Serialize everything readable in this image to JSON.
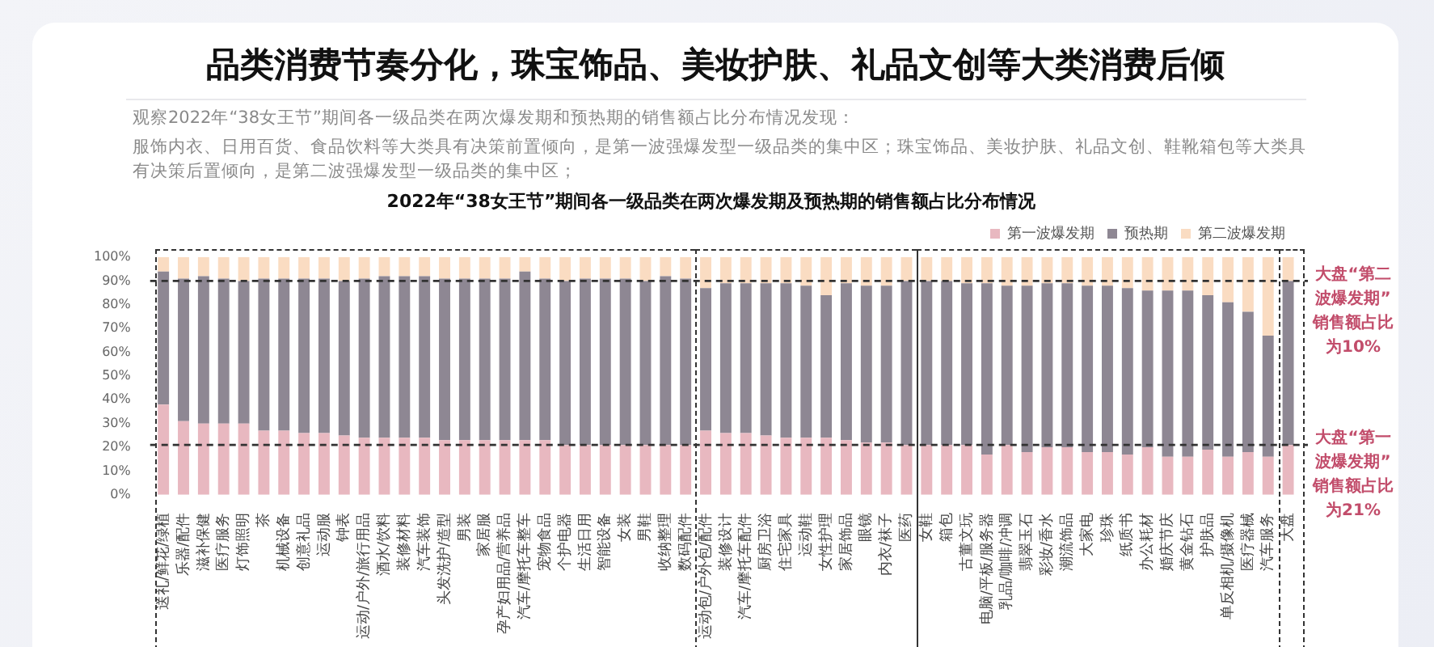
{
  "chart_data": {
    "type": "bar",
    "title": "品类消费节奏分化，珠宝饰品、美妆护肤、礼品文创等大类消费后倾",
    "subtitle": "2022年“38女王节”期间各一级品类在两次爆发期及预热期的销售额占比分布情况",
    "annotations": [
      "观察2022年“38女王节”期间各一级品类在两次爆发期和预热期的销售额占比分布情况发现：",
      "服饰内衣、日用百货、食品饮料等大类具有决策前置倾向，是第一波强爆发型一级品类的集中区；珠宝饰品、美妆护肤、礼品文创、鞋靴箱包等大类具有决策后置倾向，是第二波强爆发型一级品类的集中区；"
    ],
    "categories": [
      "送礼/鲜花/绿植",
      "乐器/配件",
      "滋补保健",
      "医疗服务",
      "灯饰照明",
      "茶",
      "机械设备",
      "创意礼品",
      "运动服",
      "钟表",
      "运动/户外/旅行用品",
      "酒水/饮料",
      "装修材料",
      "汽车装饰",
      "头发洗护/造型",
      "男装",
      "家居服",
      "孕产妇用品/营养品",
      "汽车/摩托车整车",
      "宠物食品",
      "个护电器",
      "生活日用",
      "智能设备",
      "女装",
      "男鞋",
      "收纳整理",
      "数码配件",
      "运动包/户外包/配件",
      "装修设计",
      "汽车/摩托车配件",
      "厨房卫浴",
      "住宅家具",
      "运动鞋",
      "女性护理",
      "家居饰品",
      "眼镜",
      "内衣/袜子",
      "医药",
      "女鞋",
      "箱包",
      "古董文玩",
      "电脑/平板/服务器",
      "乳品/咖啡/冲调",
      "翡翠玉石",
      "彩妆/香水",
      "潮流饰品",
      "大家电",
      "珍珠",
      "纸质书",
      "办公耗材",
      "婚庆节庆",
      "黄金钻石",
      "护肤品",
      "单反相机/摄像机",
      "医疗器械",
      "汽车服务",
      "大盘"
    ],
    "series": [
      {
        "name": "第一波爆发期",
        "color": "#e8b8c0",
        "values": [
          38,
          31,
          30,
          30,
          30,
          27,
          27,
          26,
          26,
          25,
          24,
          24,
          24,
          24,
          23,
          23,
          23,
          23,
          23,
          23,
          21,
          21,
          21,
          21,
          21,
          21,
          21,
          27,
          26,
          26,
          25,
          24,
          24,
          24,
          23,
          22,
          22,
          21,
          21,
          21,
          21,
          17,
          21,
          18,
          20,
          20,
          18,
          18,
          17,
          20,
          16,
          16,
          19,
          16,
          18,
          16,
          21
        ]
      },
      {
        "name": "预热期",
        "color": "#8e8793",
        "values": [
          56,
          60,
          62,
          61,
          60,
          64,
          64,
          65,
          65,
          65,
          67,
          68,
          68,
          68,
          68,
          68,
          68,
          68,
          71,
          68,
          69,
          70,
          70,
          70,
          69,
          71,
          70,
          60,
          63,
          63,
          64,
          65,
          64,
          60,
          66,
          66,
          66,
          69,
          69,
          69,
          68,
          72,
          67,
          70,
          69,
          69,
          70,
          70,
          70,
          66,
          70,
          70,
          65,
          65,
          59,
          51,
          69
        ]
      },
      {
        "name": "第二波爆发期",
        "color": "#fadcc2",
        "values": [
          6,
          9,
          8,
          9,
          10,
          9,
          9,
          9,
          9,
          10,
          9,
          8,
          8,
          8,
          9,
          9,
          9,
          9,
          6,
          9,
          10,
          9,
          9,
          9,
          10,
          8,
          9,
          13,
          11,
          11,
          11,
          11,
          12,
          16,
          11,
          12,
          12,
          10,
          10,
          10,
          11,
          11,
          12,
          12,
          11,
          11,
          12,
          12,
          13,
          14,
          14,
          14,
          16,
          19,
          23,
          33,
          10
        ]
      }
    ],
    "stacked": true,
    "ylim": [
      0,
      100
    ],
    "yticks": [
      {
        "value": 0,
        "label": "0%"
      },
      {
        "value": 10,
        "label": "10%"
      },
      {
        "value": 20,
        "label": "20%"
      },
      {
        "value": 30,
        "label": "30%"
      },
      {
        "value": 40,
        "label": "40%"
      },
      {
        "value": 50,
        "label": "50%"
      },
      {
        "value": 60,
        "label": "60%"
      },
      {
        "value": 70,
        "label": "70%"
      },
      {
        "value": 80,
        "label": "80%"
      },
      {
        "value": 90,
        "label": "90%"
      },
      {
        "value": 100,
        "label": "100%"
      }
    ],
    "legend": "top right",
    "ref_lines": [
      {
        "axis": "y",
        "value": 90,
        "label": "大盘“第二波爆发期”销售额占比为10%",
        "color": "#333333",
        "line_style": "dashed"
      },
      {
        "axis": "y",
        "value": 21,
        "label": "大盘“第一波爆发期”销售额占比为21%",
        "color": "#333333",
        "line_style": "dashed"
      }
    ]
  }
}
